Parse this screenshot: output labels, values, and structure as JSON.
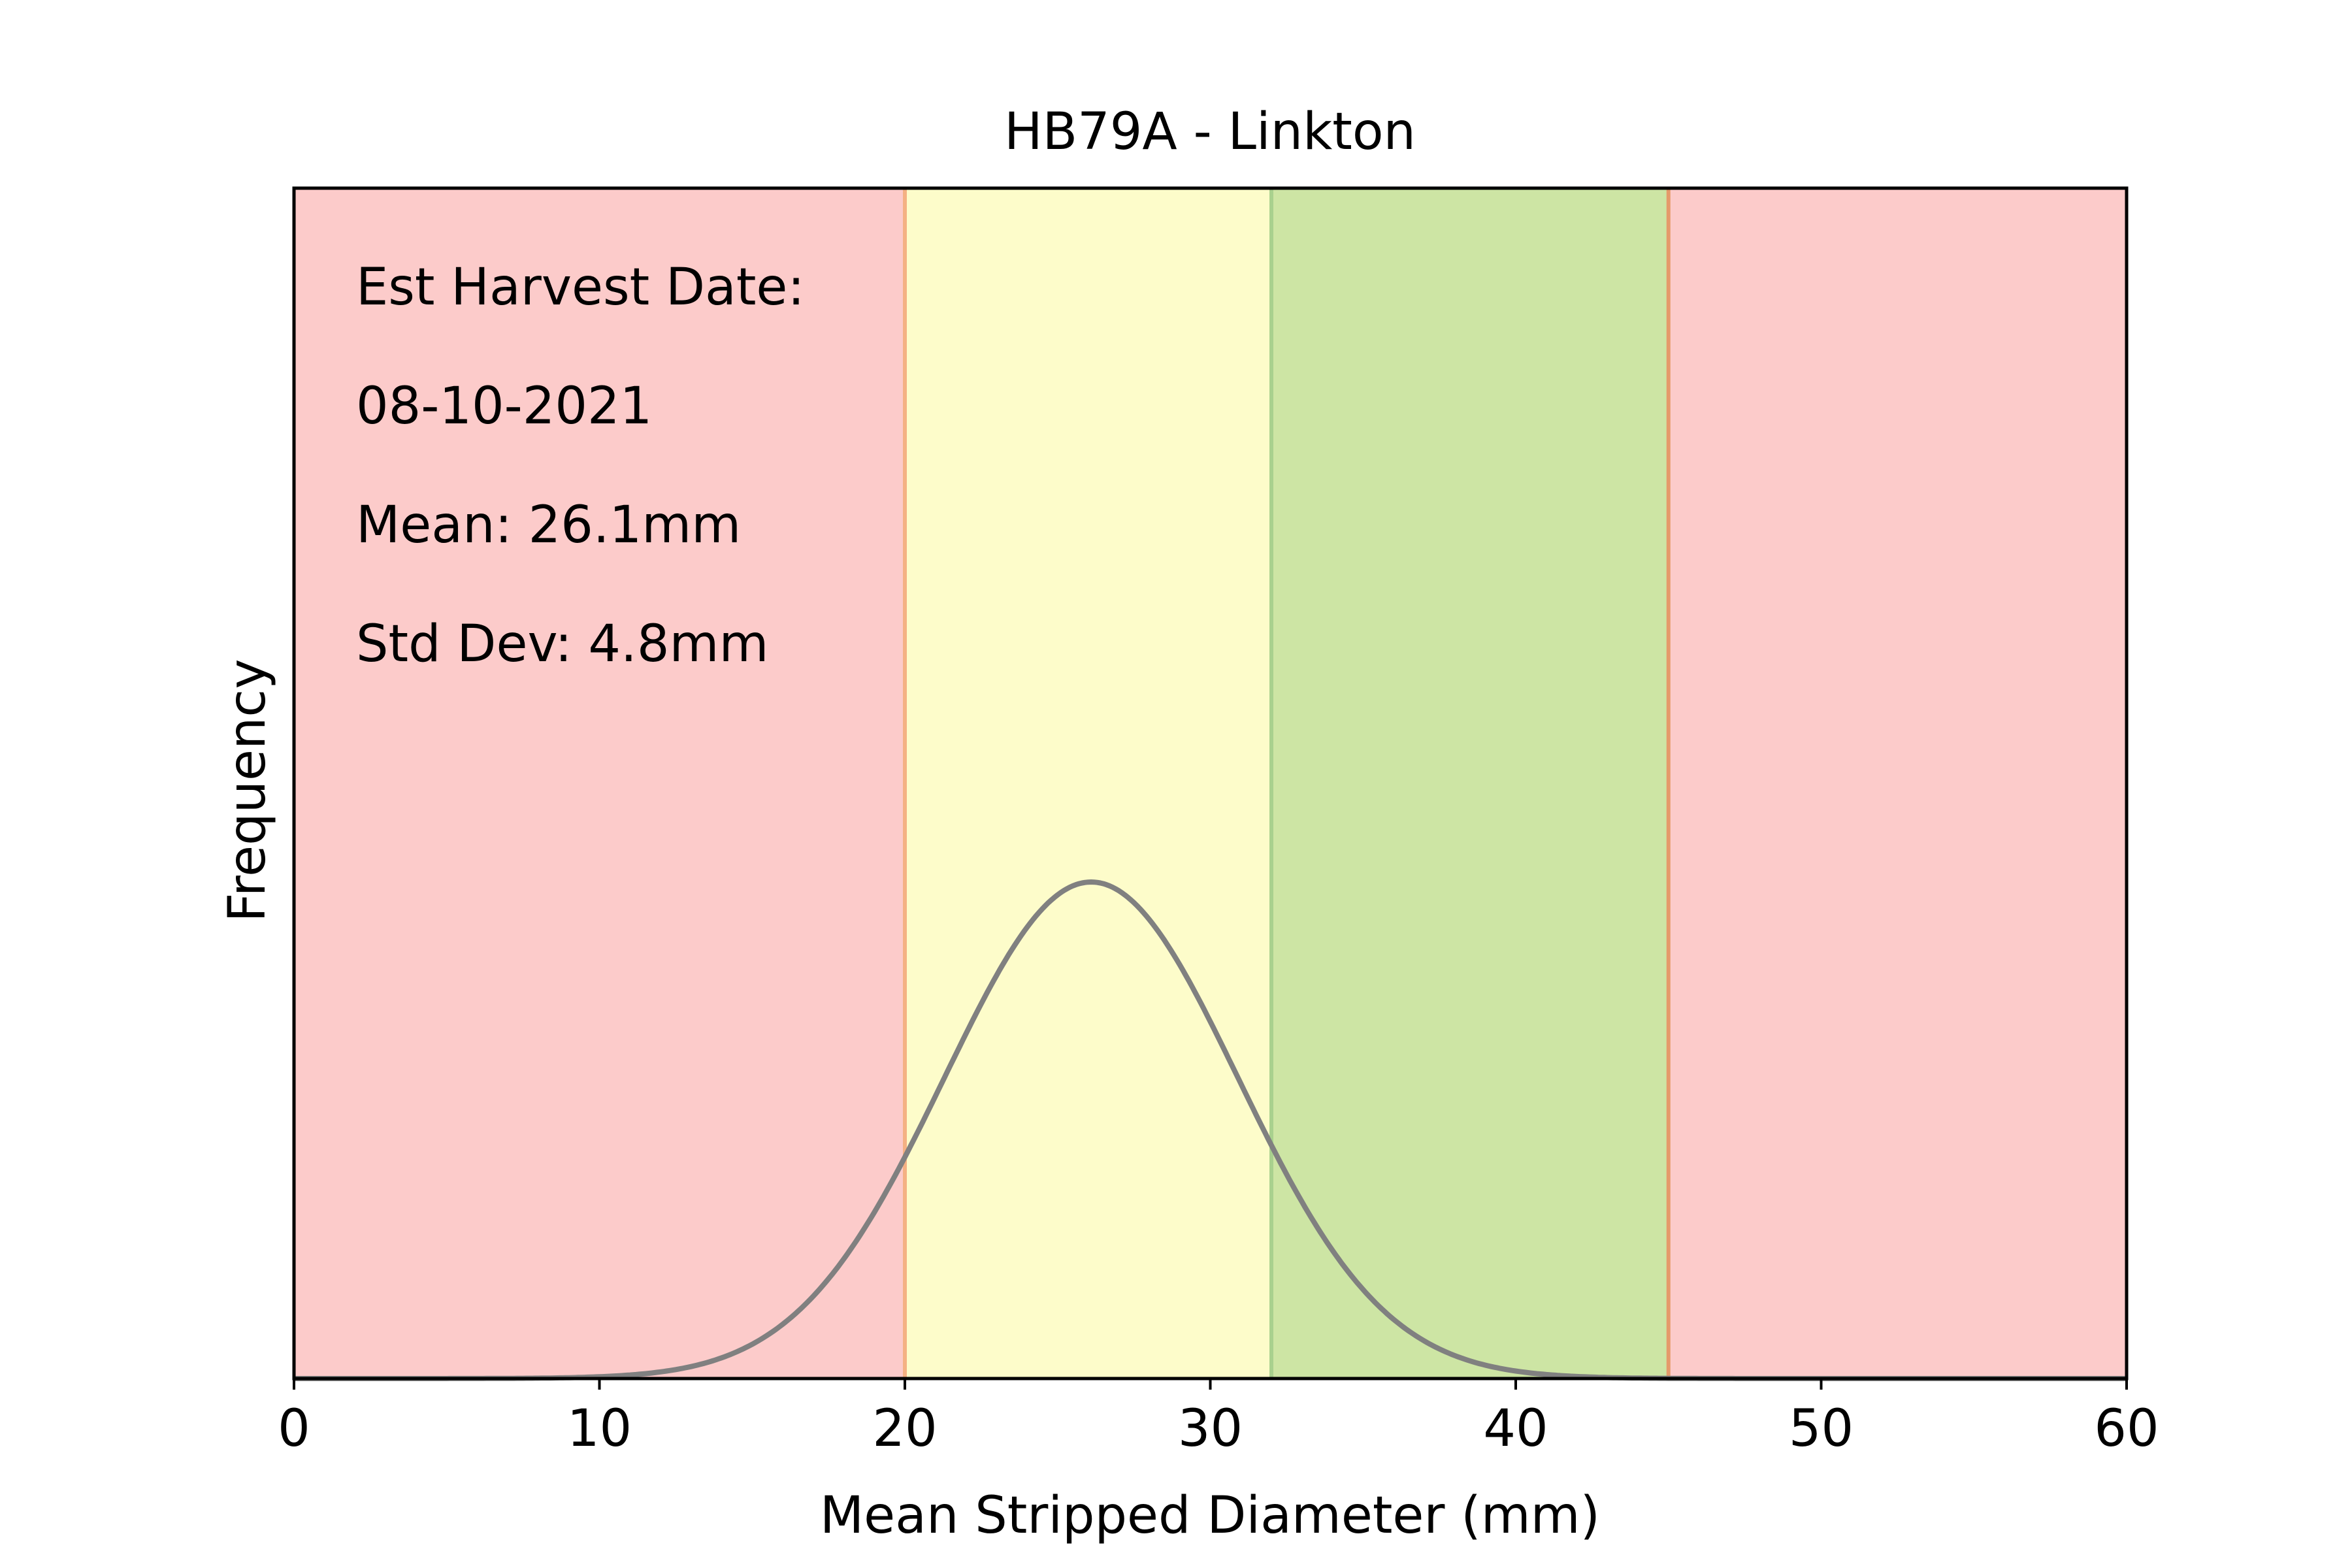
{
  "chart_data": {
    "type": "line",
    "title": "HB79A - Linkton",
    "xlabel": "Mean Stripped Diameter (mm)",
    "ylabel": "Frequency",
    "xlim": [
      0,
      60
    ],
    "xticks": [
      0,
      10,
      20,
      30,
      40,
      50,
      60
    ],
    "xtick_labels": [
      "0",
      "10",
      "20",
      "30",
      "40",
      "50",
      "60"
    ],
    "yticks_shown": false,
    "grid": false,
    "annotations": [
      "Est Harvest Date:",
      "08-10-2021",
      "Mean: 26.1mm",
      "Std Dev: 4.8mm"
    ],
    "curve": {
      "kind": "normal distribution",
      "mean": 26.1,
      "std_dev": 4.8,
      "color": "#808080"
    },
    "bands": [
      {
        "x0": 0,
        "x1": 20,
        "color": "#fccbca"
      },
      {
        "x0": 20,
        "x1": 32,
        "color": "#fdfcca"
      },
      {
        "x0": 32,
        "x1": 45,
        "color": "#cde5a4"
      },
      {
        "x0": 45,
        "x1": 60,
        "color": "#fccbca"
      }
    ],
    "band_edges": [
      {
        "x": 20,
        "color": "#f4b183"
      },
      {
        "x": 32,
        "color": "#a9d18e"
      },
      {
        "x": 45,
        "color": "#e59a6a"
      }
    ]
  }
}
